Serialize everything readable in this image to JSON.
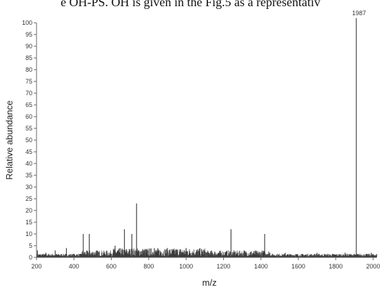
{
  "caption_fragment": "e OH-PS. OH is given in the Fig.5 as a representativ",
  "chart_data": {
    "type": "line",
    "title": "",
    "xlabel": "m/z",
    "ylabel": "Relative abundance",
    "xlim": [
      200,
      2020
    ],
    "ylim": [
      0,
      100
    ],
    "x_ticks": [
      200,
      400,
      600,
      800,
      1000,
      1200,
      1400,
      1600,
      1800,
      2000
    ],
    "y_ticks": [
      0,
      5,
      10,
      15,
      20,
      25,
      30,
      35,
      40,
      45,
      50,
      55,
      60,
      65,
      70,
      75,
      80,
      85,
      90,
      95,
      100
    ],
    "grid": false,
    "peak_label": "1987",
    "peaks": [
      {
        "x": 205,
        "y": 3
      },
      {
        "x": 250,
        "y": 2
      },
      {
        "x": 300,
        "y": 3
      },
      {
        "x": 360,
        "y": 4
      },
      {
        "x": 450,
        "y": 10
      },
      {
        "x": 482,
        "y": 10
      },
      {
        "x": 520,
        "y": 3
      },
      {
        "x": 620,
        "y": 5
      },
      {
        "x": 670,
        "y": 12
      },
      {
        "x": 710,
        "y": 10
      },
      {
        "x": 735,
        "y": 23
      },
      {
        "x": 830,
        "y": 4
      },
      {
        "x": 900,
        "y": 4
      },
      {
        "x": 1000,
        "y": 4
      },
      {
        "x": 1100,
        "y": 3
      },
      {
        "x": 1240,
        "y": 12
      },
      {
        "x": 1310,
        "y": 3
      },
      {
        "x": 1420,
        "y": 10
      },
      {
        "x": 1530,
        "y": 2
      },
      {
        "x": 1700,
        "y": 2
      },
      {
        "x": 1850,
        "y": 2
      },
      {
        "x": 1910,
        "y": 102
      },
      {
        "x": 1990,
        "y": 2
      }
    ]
  }
}
